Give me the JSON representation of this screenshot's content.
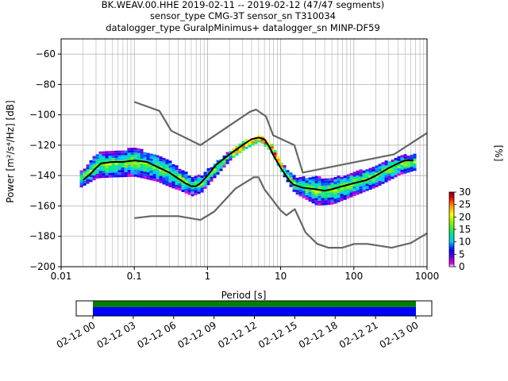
{
  "chart_data": {
    "type": "scatter",
    "title_lines": [
      "BK.WEAV.00.HHE   2019-02-11 -- 2019-02-12  (47/47 segments)",
      "sensor_type CMG-3T sensor_sn T310034",
      "datalogger_type GuralpMinimus+ datalogger_sn MINP-DF59"
    ],
    "xlabel": "Period [s]",
    "ylabel": "Power [m²/s⁴/Hz] [dB]",
    "x_scale": "log",
    "xlim": [
      0.01,
      1000
    ],
    "ylim": [
      -200,
      -50
    ],
    "grid": true,
    "x_ticks": [
      0.01,
      0.1,
      1,
      10,
      100,
      1000
    ],
    "x_tick_labels": [
      "0.01",
      "0.1",
      "1",
      "10",
      "100",
      "1000"
    ],
    "y_ticks": [
      -200,
      -180,
      -160,
      -140,
      -120,
      -100,
      -80,
      -60
    ],
    "y_tick_labels": [
      "−200",
      "−180",
      "−160",
      "−140",
      "−120",
      "−100",
      "−80",
      "−60"
    ],
    "colorbar": {
      "label": "[%]",
      "ticks": [
        0,
        5,
        10,
        15,
        20,
        25,
        30
      ],
      "range": [
        0,
        30
      ]
    },
    "series": [
      {
        "name": "",
        "role": "mode",
        "color": "#000000",
        "points": [
          [
            0.02,
            -143
          ],
          [
            0.025,
            -139
          ],
          [
            0.03,
            -135
          ],
          [
            0.035,
            -132
          ],
          [
            0.05,
            -131
          ],
          [
            0.07,
            -131
          ],
          [
            0.1,
            -130
          ],
          [
            0.15,
            -131
          ],
          [
            0.2,
            -134
          ],
          [
            0.3,
            -138
          ],
          [
            0.4,
            -142
          ],
          [
            0.5,
            -145
          ],
          [
            0.6,
            -147
          ],
          [
            0.7,
            -147
          ],
          [
            0.8,
            -145
          ],
          [
            1,
            -140
          ],
          [
            1.3,
            -133
          ],
          [
            2,
            -126
          ],
          [
            3,
            -120
          ],
          [
            4,
            -116
          ],
          [
            5,
            -115
          ],
          [
            6,
            -116
          ],
          [
            7,
            -121
          ],
          [
            8,
            -127
          ],
          [
            10,
            -135
          ],
          [
            13,
            -143
          ],
          [
            15,
            -146
          ],
          [
            20,
            -148
          ],
          [
            30,
            -149
          ],
          [
            40,
            -150
          ],
          [
            50,
            -149
          ],
          [
            70,
            -147
          ],
          [
            100,
            -145
          ],
          [
            150,
            -143
          ],
          [
            200,
            -140
          ],
          [
            300,
            -135
          ],
          [
            400,
            -132
          ],
          [
            500,
            -130
          ],
          [
            650,
            -130
          ]
        ]
      },
      {
        "name": "",
        "role": "high noise model",
        "color": "#666666",
        "points": [
          [
            0.1,
            -91.5
          ],
          [
            0.22,
            -97.4
          ],
          [
            0.32,
            -110.5
          ],
          [
            0.8,
            -120
          ],
          [
            3.8,
            -98
          ],
          [
            4.6,
            -96.5
          ],
          [
            6.3,
            -101
          ],
          [
            7.9,
            -113.5
          ],
          [
            15.4,
            -120
          ],
          [
            20,
            -138
          ],
          [
            354.8,
            -126
          ],
          [
            1000,
            -112
          ]
        ]
      },
      {
        "name": "",
        "role": "low noise model",
        "color": "#666666",
        "points": [
          [
            0.1,
            -168
          ],
          [
            0.17,
            -166.7
          ],
          [
            0.4,
            -166.7
          ],
          [
            0.8,
            -169.2
          ],
          [
            1.24,
            -163.7
          ],
          [
            2.4,
            -148.6
          ],
          [
            4.3,
            -141.1
          ],
          [
            5,
            -141.1
          ],
          [
            6,
            -149
          ],
          [
            10,
            -163
          ],
          [
            12,
            -166.2
          ],
          [
            15.6,
            -162.1
          ],
          [
            21.9,
            -177.5
          ],
          [
            31.6,
            -185
          ],
          [
            45,
            -187.5
          ],
          [
            70,
            -187.5
          ],
          [
            101,
            -185
          ],
          [
            154,
            -185
          ],
          [
            328,
            -187.5
          ],
          [
            600,
            -184.4
          ],
          [
            1000,
            -178
          ]
        ]
      }
    ],
    "density": {
      "description_free": true,
      "band_center": [
        [
          0.018,
          -142
        ],
        [
          0.03,
          -133
        ],
        [
          0.05,
          -132
        ],
        [
          0.1,
          -131
        ],
        [
          0.2,
          -135
        ],
        [
          0.4,
          -142
        ],
        [
          0.6,
          -147
        ],
        [
          0.8,
          -145
        ],
        [
          1,
          -140
        ],
        [
          2,
          -126
        ],
        [
          3,
          -120
        ],
        [
          5,
          -115
        ],
        [
          7,
          -121
        ],
        [
          10,
          -135
        ],
        [
          15,
          -146
        ],
        [
          30,
          -150
        ],
        [
          50,
          -150
        ],
        [
          100,
          -145
        ],
        [
          200,
          -140
        ],
        [
          400,
          -133
        ],
        [
          650,
          -131
        ]
      ],
      "band_halfwidth": [
        [
          0.018,
          5
        ],
        [
          0.03,
          8
        ],
        [
          0.1,
          9
        ],
        [
          0.3,
          8
        ],
        [
          0.6,
          6
        ],
        [
          1,
          5
        ],
        [
          2,
          3
        ],
        [
          5,
          2
        ],
        [
          10,
          3
        ],
        [
          15,
          5
        ],
        [
          30,
          9
        ],
        [
          60,
          8
        ],
        [
          150,
          7
        ],
        [
          400,
          6
        ],
        [
          650,
          5
        ]
      ]
    },
    "time_axis": {
      "tick_labels": [
        "02-12 00",
        "02-12 03",
        "02-12 06",
        "02-12 09",
        "02-12 12",
        "02-12 15",
        "02-12 18",
        "02-12 21",
        "02-13 00"
      ],
      "coverage_colors": {
        "top": "#008000",
        "bottom": "#0000ff"
      }
    }
  }
}
